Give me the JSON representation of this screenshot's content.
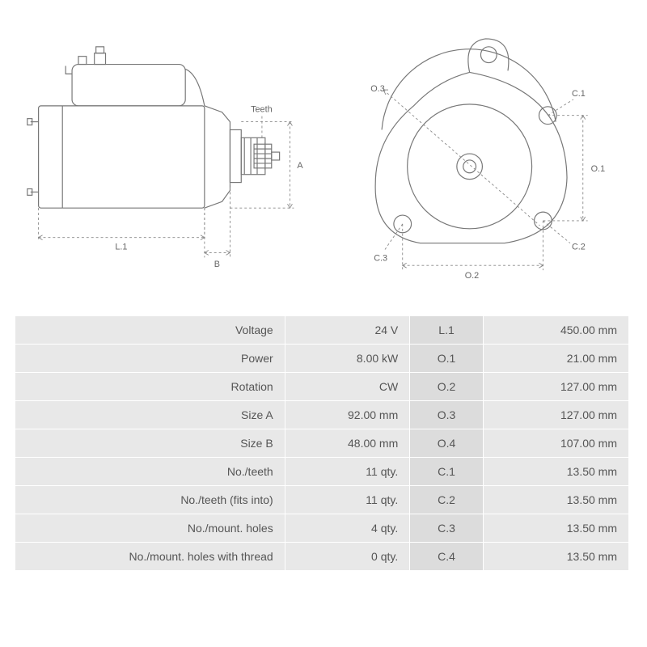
{
  "diagram": {
    "side_labels": {
      "teeth": "Teeth",
      "A": "A",
      "B": "B",
      "L1": "L.1"
    },
    "front_labels": {
      "O1": "O.1",
      "O2": "O.2",
      "O3": "O.3",
      "C1": "C.1",
      "C2": "C.2",
      "C3": "C.3"
    },
    "stroke_color": "#777777",
    "dash_color": "#888888",
    "label_color": "#666666",
    "label_fontsize": 11,
    "line_width": 1.2
  },
  "specs": {
    "left": [
      {
        "label": "Voltage",
        "value": "24 V"
      },
      {
        "label": "Power",
        "value": "8.00 kW"
      },
      {
        "label": "Rotation",
        "value": "CW"
      },
      {
        "label": "Size A",
        "value": "92.00 mm"
      },
      {
        "label": "Size B",
        "value": "48.00 mm"
      },
      {
        "label": "No./teeth",
        "value": "11 qty."
      },
      {
        "label": "No./teeth (fits into)",
        "value": "11 qty."
      },
      {
        "label": "No./mount. holes",
        "value": "4 qty."
      },
      {
        "label": "No./mount. holes with thread",
        "value": "0 qty."
      }
    ],
    "right": [
      {
        "key": "L.1",
        "value": "450.00 mm"
      },
      {
        "key": "O.1",
        "value": "21.00 mm"
      },
      {
        "key": "O.2",
        "value": "127.00 mm"
      },
      {
        "key": "O.3",
        "value": "127.00 mm"
      },
      {
        "key": "O.4",
        "value": "107.00 mm"
      },
      {
        "key": "C.1",
        "value": "13.50 mm"
      },
      {
        "key": "C.2",
        "value": "13.50 mm"
      },
      {
        "key": "C.3",
        "value": "13.50 mm"
      },
      {
        "key": "C.4",
        "value": "13.50 mm"
      }
    ],
    "row_bg": "#e8e8e8",
    "key_bg": "#dcdcdc",
    "text_color": "#555555",
    "fontsize": 14
  }
}
